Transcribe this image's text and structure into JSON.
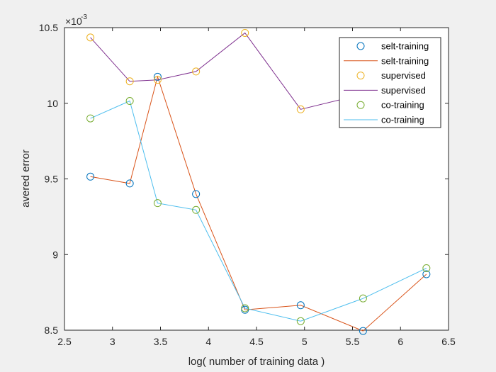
{
  "chart_data": {
    "type": "line",
    "title": "",
    "xlabel": "log( number of training data )",
    "ylabel": "avered error",
    "xlim": [
      2.5,
      6.5
    ],
    "ylim": [
      8.5,
      10.5
    ],
    "xticks": [
      "2.5",
      "3",
      "3.5",
      "4",
      "4.5",
      "5",
      "5.5",
      "6",
      "6.5"
    ],
    "yticks": [
      "8.5",
      "9",
      "9.5",
      "10",
      "10.5"
    ],
    "y_exponent_label": "×10",
    "y_exponent_power": "-3",
    "grid": false,
    "legend_placement": "top-right",
    "x": [
      2.77,
      3.18,
      3.47,
      3.87,
      4.38,
      4.96,
      5.61,
      6.27
    ],
    "series": [
      {
        "name": "selt-training",
        "marker_label": "selt-training",
        "line_label": "selt-training",
        "marker_color": "#0072bd",
        "line_color": "#d95319",
        "values": [
          9.515,
          9.47,
          10.175,
          9.4,
          8.635,
          8.665,
          8.495,
          8.87
        ]
      },
      {
        "name": "supervised",
        "marker_label": "supervised",
        "line_label": "supervised",
        "marker_color": "#edb120",
        "line_color": "#7e2f8e",
        "values": [
          10.435,
          10.145,
          10.155,
          10.21,
          10.465,
          9.96,
          10.06,
          10.1
        ]
      },
      {
        "name": "co-training",
        "marker_label": "co-training",
        "line_label": "co-training",
        "marker_color": "#77ac30",
        "line_color": "#4dbeee",
        "values": [
          9.9,
          10.015,
          9.34,
          9.295,
          8.645,
          8.56,
          8.71,
          8.91
        ]
      }
    ]
  }
}
